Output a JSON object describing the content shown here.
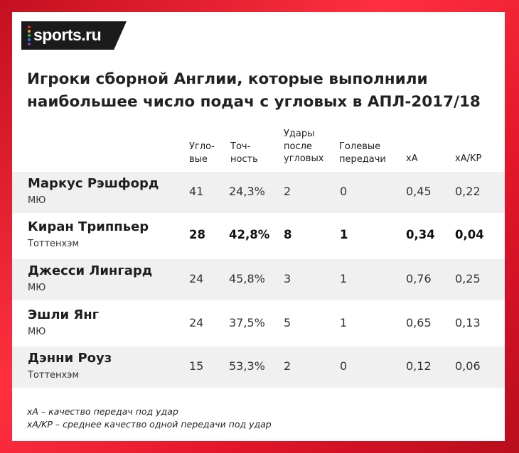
{
  "logo": {
    "text": "sports.ru",
    "dot_colors": [
      "#e8232b",
      "#f7a11a",
      "#2fb34a",
      "#1d8fe0",
      "#8a3fc8"
    ]
  },
  "title_lines": [
    "Игроки сборной Англии, которые выполнили",
    "наибольшее число подач с угловых в АПЛ-2017/18"
  ],
  "headers": {
    "corners": [
      "Угло-",
      "вые"
    ],
    "accuracy": [
      "Точ-",
      "ность"
    ],
    "shots": [
      "Удары",
      "после",
      "угловых"
    ],
    "assists": [
      "Голевые",
      "передачи"
    ],
    "xa": [
      "xA"
    ],
    "xakp": [
      "xA/KP"
    ]
  },
  "chart_data": {
    "type": "table",
    "title": "Игроки сборной Англии, которые выполнили наибольшее число подач с угловых в АПЛ-2017/18",
    "columns": [
      "Угловые",
      "Точность",
      "Удары после угловых",
      "Голевые передачи",
      "xA",
      "xA/KP"
    ],
    "rows": [
      {
        "name": "Маркус Рэшфорд",
        "team": "МЮ",
        "values": [
          "41",
          "24,3%",
          "2",
          "0",
          "0,45",
          "0,22"
        ],
        "bold": false,
        "shaded": true
      },
      {
        "name": "Киран Триппьер",
        "team": "Тоттенхэм",
        "values": [
          "28",
          "42,8%",
          "8",
          "1",
          "0,34",
          "0,04"
        ],
        "bold": true,
        "shaded": false
      },
      {
        "name": "Джесси Лингард",
        "team": "МЮ",
        "values": [
          "24",
          "45,8%",
          "3",
          "1",
          "0,76",
          "0,25"
        ],
        "bold": false,
        "shaded": true
      },
      {
        "name": "Эшли Янг",
        "team": "МЮ",
        "values": [
          "24",
          "37,5%",
          "5",
          "1",
          "0,65",
          "0,13"
        ],
        "bold": false,
        "shaded": false
      },
      {
        "name": "Дэнни Роуз",
        "team": "Тоттенхэм",
        "values": [
          "15",
          "53,3%",
          "2",
          "0",
          "0,12",
          "0,06"
        ],
        "bold": false,
        "shaded": true
      }
    ]
  },
  "notes": [
    "xA – качество передач под удар",
    "xA/KP – среднее качество одной передачи под удар"
  ]
}
